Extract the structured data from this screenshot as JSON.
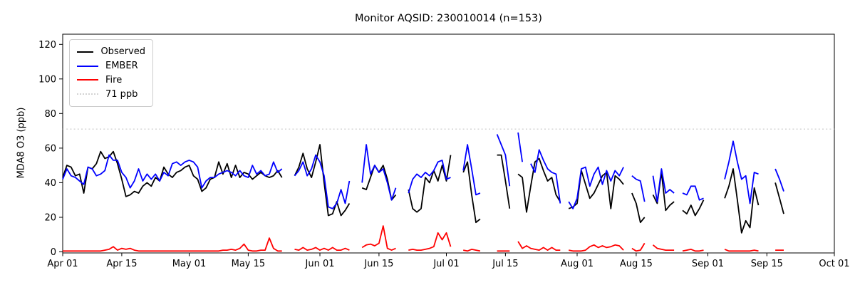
{
  "title": "Monitor AQSID: 230010014 (n=153)",
  "legend": {
    "items": [
      {
        "label": "Observed",
        "color": "#000000",
        "style": "solid"
      },
      {
        "label": "EMBER",
        "color": "#0000ff",
        "style": "solid"
      },
      {
        "label": "Fire",
        "color": "#ff0000",
        "style": "solid"
      },
      {
        "label": "71 ppb",
        "color": "#d3d3d3",
        "style": "dotted"
      }
    ]
  },
  "chart_data": {
    "type": "line",
    "title": "Monitor AQSID: 230010014 (n=153)",
    "xlabel": "",
    "ylabel": "MDA8 O3 (ppb)",
    "grid": false,
    "legend_position": "upper left",
    "ylim": [
      0,
      126
    ],
    "y_ticks": [
      0,
      20,
      40,
      60,
      80,
      100,
      120
    ],
    "x_range_days": [
      0,
      183
    ],
    "x_ticks": [
      {
        "label": "Apr 01",
        "day": 0
      },
      {
        "label": "Apr 15",
        "day": 14
      },
      {
        "label": "May 01",
        "day": 30
      },
      {
        "label": "May 15",
        "day": 44
      },
      {
        "label": "Jun 01",
        "day": 61
      },
      {
        "label": "Jun 15",
        "day": 75
      },
      {
        "label": "Jul 01",
        "day": 91
      },
      {
        "label": "Jul 15",
        "day": 105
      },
      {
        "label": "Aug 01",
        "day": 122
      },
      {
        "label": "Aug 15",
        "day": 136
      },
      {
        "label": "Sep 01",
        "day": 153
      },
      {
        "label": "Sep 15",
        "day": 167
      },
      {
        "label": "Oct 01",
        "day": 183
      }
    ],
    "threshold": {
      "value": 71,
      "label": "71 ppb",
      "color": "#d3d3d3",
      "style": "dotted"
    },
    "series_start_label": "Apr 01",
    "series": [
      {
        "name": "Observed",
        "color": "#000000",
        "values": [
          43,
          50,
          49,
          44,
          45,
          34,
          49,
          48,
          51,
          58,
          54,
          55,
          58,
          51,
          42,
          32,
          33,
          35,
          34,
          38,
          40,
          38,
          43,
          41,
          49,
          45,
          43,
          46,
          47,
          49,
          50,
          44,
          42,
          35,
          37,
          42,
          43,
          52,
          45,
          51,
          43,
          50,
          43,
          46,
          45,
          42,
          44,
          46,
          44,
          43,
          44,
          47,
          43,
          null,
          null,
          44,
          49,
          57,
          48,
          43,
          52,
          62,
          40,
          21,
          22,
          29,
          21,
          24,
          28,
          null,
          null,
          37,
          36,
          43,
          50,
          46,
          50,
          42,
          30,
          33,
          null,
          null,
          36,
          25,
          23,
          25,
          43,
          40,
          47,
          41,
          50,
          41,
          56,
          null,
          null,
          46,
          52,
          33,
          17,
          19,
          null,
          null,
          null,
          56,
          56,
          41,
          25,
          null,
          45,
          43,
          23,
          38,
          52,
          54,
          47,
          41,
          43,
          33,
          29,
          null,
          25,
          26,
          28,
          47,
          39,
          31,
          34,
          39,
          44,
          46,
          25,
          44,
          42,
          39,
          null,
          34,
          28,
          17,
          20,
          null,
          33,
          28,
          46,
          24,
          27,
          29,
          null,
          24,
          22,
          27,
          21,
          25,
          30,
          null,
          null,
          null,
          null,
          31,
          38,
          48,
          30,
          11,
          18,
          14,
          37,
          27,
          null,
          null,
          null,
          40,
          31,
          22
        ]
      },
      {
        "name": "EMBER",
        "color": "#0000ff",
        "values": [
          42,
          48,
          44,
          43,
          41,
          39,
          49,
          48,
          44,
          45,
          47,
          56,
          53,
          53,
          46,
          43,
          37,
          41,
          48,
          41,
          45,
          42,
          45,
          41,
          46,
          44,
          51,
          52,
          50,
          52,
          53,
          52,
          49,
          37,
          41,
          43,
          43,
          45,
          46,
          47,
          46,
          44,
          47,
          44,
          43,
          50,
          45,
          47,
          44,
          45,
          52,
          46,
          48,
          null,
          null,
          44,
          47,
          52,
          44,
          48,
          56,
          52,
          44,
          26,
          25,
          28,
          36,
          28,
          41,
          null,
          null,
          40,
          62,
          45,
          50,
          46,
          48,
          40,
          30,
          37,
          null,
          null,
          34,
          42,
          45,
          43,
          46,
          44,
          47,
          52,
          53,
          42,
          43,
          null,
          null,
          47,
          62,
          48,
          33,
          34,
          null,
          null,
          null,
          68,
          62,
          56,
          38,
          null,
          69,
          52,
          null,
          51,
          46,
          59,
          53,
          48,
          46,
          45,
          28,
          null,
          29,
          25,
          31,
          48,
          49,
          38,
          45,
          49,
          39,
          47,
          41,
          47,
          44,
          49,
          null,
          44,
          42,
          41,
          29,
          null,
          44,
          29,
          48,
          34,
          36,
          34,
          null,
          34,
          33,
          38,
          38,
          30,
          31,
          null,
          null,
          null,
          null,
          42,
          52,
          64,
          52,
          42,
          44,
          28,
          46,
          45,
          null,
          null,
          null,
          48,
          42,
          35
        ]
      },
      {
        "name": "Fire",
        "color": "#ff0000",
        "values": [
          0.5,
          0.5,
          0.5,
          0.5,
          0.5,
          0.5,
          0.5,
          0.5,
          0.5,
          0.5,
          1,
          1.5,
          3,
          1,
          2,
          1.5,
          2,
          1,
          0.5,
          0.5,
          0.5,
          0.5,
          0.5,
          0.5,
          0.5,
          0.5,
          0.5,
          0.5,
          0.5,
          0.5,
          0.5,
          0.5,
          0.5,
          0.5,
          0.5,
          0.5,
          0.5,
          0.5,
          1,
          1,
          1.5,
          1,
          2,
          4.5,
          1,
          0.5,
          0.5,
          1,
          1,
          8,
          2,
          0.5,
          0.5,
          null,
          null,
          1.5,
          1,
          2.5,
          1,
          1.5,
          2.5,
          1,
          2,
          1,
          2.5,
          1,
          1,
          2,
          1,
          null,
          null,
          2.5,
          4,
          4.5,
          3.5,
          5,
          15,
          2,
          1,
          2,
          null,
          null,
          1,
          1.5,
          1,
          1,
          1.5,
          2,
          3,
          11,
          7,
          11,
          3,
          null,
          null,
          1,
          0.5,
          1.5,
          1,
          0.5,
          null,
          null,
          null,
          0.5,
          0.5,
          0.5,
          0.5,
          null,
          6,
          2,
          3.5,
          2,
          1.5,
          1,
          2.5,
          1,
          2.5,
          1,
          1,
          null,
          1,
          0.5,
          0.5,
          0.5,
          1,
          3,
          4,
          2.5,
          3.5,
          2.5,
          3,
          4,
          3.5,
          1,
          null,
          2,
          0.5,
          1,
          5,
          null,
          4,
          2,
          1.5,
          1,
          1,
          1,
          null,
          0.5,
          1,
          1.5,
          0.5,
          0.5,
          1,
          null,
          null,
          null,
          null,
          1.5,
          0.5,
          0.5,
          0.5,
          0.5,
          0.5,
          0.5,
          1,
          0.5,
          null,
          null,
          null,
          1,
          1,
          1
        ]
      }
    ]
  }
}
